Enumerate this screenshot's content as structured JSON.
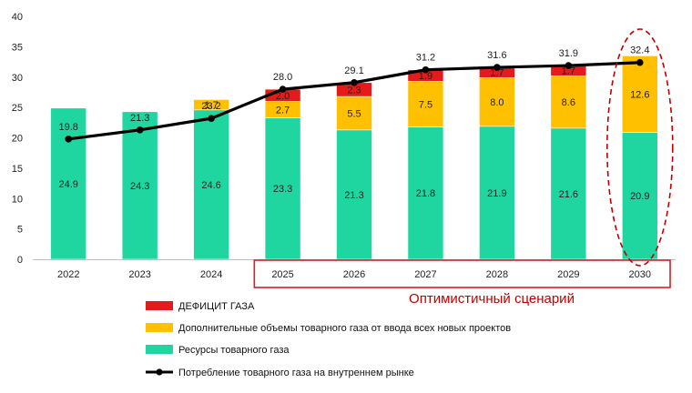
{
  "chart_data": {
    "type": "bar",
    "stacked": true,
    "categories": [
      "2022",
      "2023",
      "2024",
      "2025",
      "2026",
      "2027",
      "2028",
      "2029",
      "2030"
    ],
    "ylim": [
      0,
      40
    ],
    "yticks": [
      0,
      5,
      10,
      15,
      20,
      25,
      30,
      35,
      40
    ],
    "grid": false,
    "legend_position": "bottom",
    "series": [
      {
        "key": "resources",
        "name": "Ресурсы товарного газа",
        "color": "#1fd6a0",
        "values": [
          24.9,
          24.3,
          24.6,
          23.3,
          21.3,
          21.8,
          21.9,
          21.6,
          20.9
        ],
        "labels": [
          "24.9",
          "24.3",
          "24.6",
          "23.3",
          "21.3",
          "21.8",
          "21.9",
          "21.6",
          "20.9"
        ]
      },
      {
        "key": "additional",
        "name": "Дополнительные объемы товарного газа от ввода всех новых проектов",
        "color": "#ffc000",
        "values": [
          0,
          0,
          1.7,
          2.7,
          5.5,
          7.5,
          8.0,
          8.6,
          12.6
        ],
        "labels": [
          "",
          "",
          "1.7",
          "2.7",
          "5.5",
          "7.5",
          "8.0",
          "8.6",
          "12.6"
        ]
      },
      {
        "key": "deficit",
        "name": "ДЕФИЦИТ ГАЗА",
        "color": "#e31b1b",
        "values": [
          0,
          0,
          0,
          2.0,
          2.3,
          1.9,
          1.7,
          1.7,
          0
        ],
        "labels": [
          "",
          "",
          "",
          "2.0",
          "2.3",
          "1.9",
          "1.7",
          "1.7",
          ""
        ]
      }
    ],
    "line": {
      "name": "Потребление товарного газа на внутреннем рынке",
      "color": "#000000",
      "values": [
        19.8,
        21.3,
        23.2,
        28.0,
        29.1,
        31.2,
        31.6,
        31.9,
        32.4
      ],
      "labels": [
        "19.8",
        "21.3",
        "23.2",
        "28.0",
        "29.1",
        "31.2",
        "31.6",
        "31.9",
        "32.4"
      ]
    },
    "annotation": {
      "text": "Оптимистичный сценарий",
      "color": "#c00000",
      "applies_to": [
        "2025",
        "2026",
        "2027",
        "2028",
        "2029",
        "2030"
      ]
    },
    "legend_order": [
      "deficit",
      "additional",
      "resources",
      "line"
    ]
  }
}
